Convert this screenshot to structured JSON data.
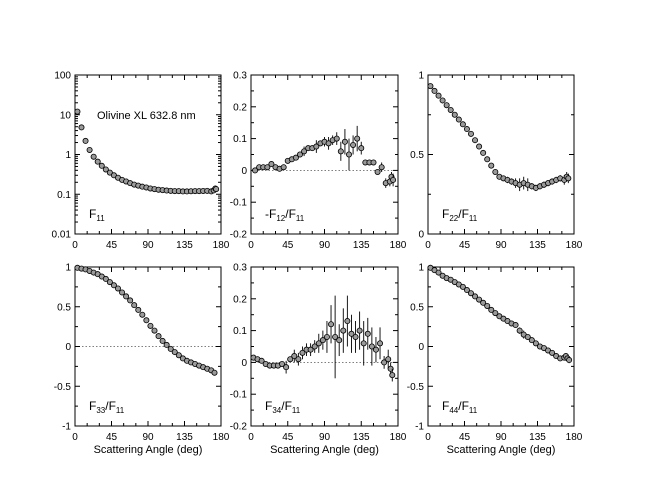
{
  "figure": {
    "annotation": "Olivine XL 632.8 nm"
  },
  "chart_data": [
    {
      "type": "scatter",
      "id": "F11",
      "label": "F",
      "label_sub": "11",
      "label_sub2": "",
      "log_y": true,
      "xlim": [
        0,
        180
      ],
      "ylim": [
        0.01,
        100
      ],
      "xticks": [
        "0",
        "45",
        "90",
        "135",
        "180"
      ],
      "xlabel": "",
      "ytick_values": [
        0.01,
        0.1,
        1,
        10,
        100
      ],
      "yticks": [
        "0.01",
        "0.1",
        "1",
        "10",
        "100"
      ],
      "zero_line": false,
      "x": [
        3,
        8,
        13,
        18,
        23,
        28,
        33,
        38,
        43,
        48,
        53,
        58,
        63,
        68,
        73,
        78,
        83,
        88,
        93,
        98,
        103,
        108,
        113,
        118,
        123,
        128,
        133,
        138,
        143,
        148,
        153,
        158,
        163,
        168,
        171,
        173,
        174
      ],
      "y": [
        12,
        4.8,
        2.2,
        1.3,
        0.88,
        0.66,
        0.52,
        0.42,
        0.35,
        0.3,
        0.26,
        0.23,
        0.21,
        0.19,
        0.175,
        0.165,
        0.155,
        0.148,
        0.14,
        0.135,
        0.13,
        0.127,
        0.124,
        0.122,
        0.12,
        0.12,
        0.118,
        0.118,
        0.119,
        0.12,
        0.12,
        0.121,
        0.122,
        0.118,
        0.125,
        0.14,
        0.135
      ],
      "err": [
        0,
        0,
        0,
        0,
        0,
        0,
        0,
        0,
        0,
        0,
        0,
        0,
        0,
        0,
        0,
        0,
        0,
        0,
        0,
        0,
        0,
        0,
        0,
        0,
        0,
        0,
        0,
        0,
        0,
        0,
        0,
        0,
        0,
        0,
        0,
        0,
        0
      ]
    },
    {
      "type": "scatter",
      "id": "F12",
      "label": "-F",
      "label_sub": "12",
      "label_sub2": "11",
      "log_y": false,
      "xlim": [
        0,
        180
      ],
      "ylim": [
        -0.2,
        0.3
      ],
      "xticks": [
        "0",
        "45",
        "90",
        "135",
        "180"
      ],
      "xlabel": "",
      "ytick_values": [
        -0.2,
        -0.1,
        0,
        0.1,
        0.2,
        0.3
      ],
      "yticks": [
        "-0.2",
        "-0.1",
        "0",
        "0.1",
        "0.2",
        "0.3"
      ],
      "zero_line": true,
      "x": [
        5,
        10,
        15,
        20,
        25,
        30,
        35,
        40,
        45,
        50,
        55,
        60,
        65,
        70,
        75,
        80,
        85,
        90,
        95,
        100,
        105,
        110,
        115,
        120,
        125,
        130,
        135,
        140,
        145,
        150,
        155,
        160,
        165,
        170,
        172,
        174
      ],
      "y": [
        0.0,
        0.01,
        0.01,
        0.01,
        0.02,
        0.01,
        0.005,
        0.01,
        0.03,
        0.035,
        0.04,
        0.05,
        0.06,
        0.07,
        0.07,
        0.075,
        0.085,
        0.09,
        0.085,
        0.095,
        0.1,
        0.06,
        0.09,
        0.05,
        0.08,
        0.1,
        0.07,
        0.025,
        0.025,
        0.025,
        -0.005,
        0.01,
        -0.04,
        -0.035,
        -0.02,
        -0.03
      ],
      "err": [
        0,
        0,
        0,
        0,
        0,
        0,
        0,
        0,
        0,
        0,
        0,
        0,
        0.015,
        0,
        0,
        0.02,
        0,
        0.015,
        0.02,
        0.015,
        0.02,
        0.03,
        0.04,
        0.05,
        0.03,
        0.04,
        0.02,
        0,
        0,
        0,
        0,
        0.015,
        0.015,
        0.015,
        0.015,
        0.02
      ]
    },
    {
      "type": "scatter",
      "id": "F22",
      "label": "F",
      "label_sub": "22",
      "label_sub2": "11",
      "log_y": false,
      "xlim": [
        0,
        180
      ],
      "ylim": [
        0,
        1
      ],
      "xticks": [
        "0",
        "45",
        "90",
        "135",
        "180"
      ],
      "xlabel": "",
      "ytick_values": [
        0,
        0.5,
        1
      ],
      "yticks": [
        "0",
        "0.5",
        "1"
      ],
      "zero_line": false,
      "x": [
        3,
        8,
        13,
        18,
        23,
        28,
        33,
        38,
        43,
        48,
        53,
        58,
        63,
        68,
        73,
        78,
        83,
        88,
        93,
        98,
        103,
        108,
        113,
        118,
        123,
        128,
        133,
        138,
        143,
        148,
        153,
        158,
        163,
        168,
        171,
        173
      ],
      "y": [
        0.93,
        0.9,
        0.87,
        0.84,
        0.81,
        0.78,
        0.75,
        0.72,
        0.69,
        0.66,
        0.63,
        0.59,
        0.55,
        0.51,
        0.47,
        0.43,
        0.39,
        0.36,
        0.35,
        0.34,
        0.33,
        0.32,
        0.31,
        0.32,
        0.31,
        0.3,
        0.29,
        0.3,
        0.31,
        0.32,
        0.33,
        0.34,
        0.35,
        0.34,
        0.36,
        0.35
      ],
      "err": [
        0,
        0,
        0,
        0,
        0,
        0,
        0,
        0,
        0,
        0,
        0,
        0,
        0,
        0,
        0,
        0,
        0,
        0,
        0,
        0.02,
        0.02,
        0.03,
        0.04,
        0.04,
        0.04,
        0.02,
        0.02,
        0.02,
        0.02,
        0.02,
        0.02,
        0.02,
        0.02,
        0.03,
        0.03,
        0.03
      ]
    },
    {
      "type": "scatter",
      "id": "F33",
      "label": "F",
      "label_sub": "33",
      "label_sub2": "11",
      "log_y": false,
      "xlim": [
        0,
        180
      ],
      "ylim": [
        -1,
        1
      ],
      "xticks": [
        "0",
        "45",
        "90",
        "135",
        "180"
      ],
      "xlabel": "Scattering Angle (deg)",
      "ytick_values": [
        -1,
        -0.5,
        0,
        0.5,
        1
      ],
      "yticks": [
        "-1",
        "-0.5",
        "0",
        "0.5",
        "1"
      ],
      "zero_line": true,
      "x": [
        3,
        8,
        13,
        18,
        23,
        28,
        33,
        38,
        43,
        48,
        53,
        58,
        63,
        68,
        73,
        78,
        83,
        88,
        93,
        98,
        103,
        108,
        113,
        118,
        123,
        128,
        133,
        138,
        143,
        148,
        153,
        158,
        163,
        168,
        172
      ],
      "y": [
        0.99,
        0.98,
        0.97,
        0.95,
        0.93,
        0.91,
        0.88,
        0.85,
        0.81,
        0.77,
        0.73,
        0.68,
        0.63,
        0.58,
        0.52,
        0.46,
        0.4,
        0.33,
        0.26,
        0.2,
        0.13,
        0.07,
        0.02,
        -0.03,
        -0.07,
        -0.11,
        -0.15,
        -0.18,
        -0.2,
        -0.22,
        -0.24,
        -0.26,
        -0.28,
        -0.3,
        -0.33
      ],
      "err": [
        0,
        0,
        0,
        0,
        0,
        0,
        0,
        0,
        0,
        0,
        0,
        0,
        0,
        0,
        0,
        0,
        0,
        0,
        0,
        0,
        0,
        0,
        0,
        0,
        0,
        0,
        0,
        0,
        0,
        0,
        0,
        0,
        0,
        0,
        0
      ]
    },
    {
      "type": "scatter",
      "id": "F34",
      "label": "F",
      "label_sub": "34",
      "label_sub2": "11",
      "log_y": false,
      "xlim": [
        0,
        180
      ],
      "ylim": [
        -0.2,
        0.3
      ],
      "xticks": [
        "0",
        "45",
        "90",
        "135",
        "180"
      ],
      "xlabel": "Scattering Angle (deg)",
      "ytick_values": [
        -0.2,
        -0.1,
        0,
        0.1,
        0.2,
        0.3
      ],
      "yticks": [
        "-0.2",
        "-0.1",
        "0",
        "0.1",
        "0.2",
        "0.3"
      ],
      "zero_line": true,
      "x": [
        3,
        8,
        13,
        18,
        23,
        28,
        33,
        38,
        43,
        48,
        53,
        58,
        63,
        68,
        73,
        78,
        83,
        88,
        93,
        98,
        103,
        108,
        113,
        118,
        123,
        128,
        133,
        138,
        143,
        148,
        153,
        158,
        163,
        168,
        171,
        173
      ],
      "y": [
        0.015,
        0.01,
        0.005,
        -0.005,
        -0.01,
        -0.01,
        -0.01,
        -0.005,
        -0.015,
        0.01,
        0.02,
        0.01,
        0.03,
        0.04,
        0.04,
        0.05,
        0.06,
        0.07,
        0.08,
        0.12,
        0.08,
        0.07,
        0.1,
        0.13,
        0.09,
        0.08,
        0.1,
        0.06,
        0.09,
        0.05,
        0.04,
        0.06,
        0.0,
        0.01,
        -0.02,
        -0.04
      ],
      "err": [
        0,
        0,
        0,
        0,
        0,
        0,
        0,
        0,
        0.02,
        0,
        0.02,
        0.02,
        0.02,
        0.02,
        0.02,
        0.02,
        0.03,
        0.03,
        0.05,
        0.06,
        0.13,
        0.05,
        0.07,
        0.08,
        0.06,
        0.05,
        0.06,
        0.07,
        0.05,
        0.06,
        0.04,
        0.05,
        0.02,
        0.03,
        0.02,
        0.02
      ]
    },
    {
      "type": "scatter",
      "id": "F44",
      "label": "F",
      "label_sub": "44",
      "label_sub2": "11",
      "log_y": false,
      "xlim": [
        0,
        180
      ],
      "ylim": [
        -1,
        1
      ],
      "xticks": [
        "0",
        "45",
        "90",
        "135",
        "180"
      ],
      "xlabel": "Scattering Angle (deg)",
      "ytick_values": [
        -1,
        -0.5,
        0,
        0.5,
        1
      ],
      "yticks": [
        "-1",
        "-0.5",
        "0",
        "0.5",
        "1"
      ],
      "zero_line": false,
      "x": [
        3,
        8,
        13,
        18,
        23,
        28,
        33,
        38,
        43,
        48,
        53,
        58,
        63,
        68,
        73,
        78,
        83,
        88,
        93,
        98,
        103,
        108,
        113,
        118,
        123,
        128,
        133,
        138,
        143,
        148,
        153,
        158,
        163,
        168,
        170,
        172,
        174
      ],
      "y": [
        0.99,
        0.96,
        0.93,
        0.89,
        0.86,
        0.84,
        0.81,
        0.78,
        0.75,
        0.71,
        0.67,
        0.63,
        0.59,
        0.55,
        0.51,
        0.46,
        0.42,
        0.38,
        0.35,
        0.32,
        0.29,
        0.27,
        0.2,
        0.15,
        0.12,
        0.08,
        0.04,
        0.0,
        -0.02,
        -0.05,
        -0.08,
        -0.12,
        -0.15,
        -0.14,
        -0.12,
        -0.15,
        -0.17
      ],
      "err": [
        0,
        0,
        0,
        0,
        0,
        0,
        0,
        0,
        0,
        0,
        0,
        0,
        0,
        0,
        0,
        0,
        0,
        0,
        0,
        0,
        0,
        0.03,
        0.04,
        0.05,
        0.03,
        0,
        0,
        0,
        0,
        0,
        0,
        0.02,
        0.02,
        0.02,
        0.03,
        0.03,
        0.04
      ]
    }
  ]
}
